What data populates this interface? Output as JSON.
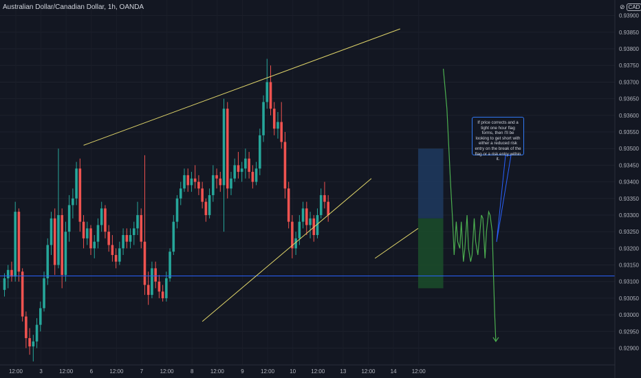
{
  "header": {
    "title": "Australian Dollar/Canadian Dollar, 1h, OANDA",
    "currency_prefix": "⊘",
    "currency": "CAD"
  },
  "annotation": {
    "text": "If price corrects and a tight one hour flag forms, then I'll be looking to get short with either a reduced risk entry on the break of the flag or a risk entry within it."
  },
  "colors": {
    "background": "#131722",
    "up": "#26a69a",
    "down": "#ef5350",
    "support_line": "#2962ff",
    "trendline": "#e0d56a",
    "projection": "#4caf50",
    "risk_zone": "#1e3a5f",
    "reward_zone": "#1b4d2a"
  },
  "chart_data": {
    "type": "candlestick",
    "symbol": "Australian Dollar/Canadian Dollar",
    "interval": "1h",
    "source": "OANDA",
    "y_ticks": [
      "0.93900",
      "0.93850",
      "0.93800",
      "0.93750",
      "0.93700",
      "0.93650",
      "0.93600",
      "0.93550",
      "0.93500",
      "0.93450",
      "0.93400",
      "0.93350",
      "0.93300",
      "0.93250",
      "0.93200",
      "0.93150",
      "0.93100",
      "0.93050",
      "0.93000",
      "0.92950",
      "0.92900"
    ],
    "ylim": [
      0.9287,
      0.9392
    ],
    "x_ticks": [
      "12:00",
      "3",
      "12:00",
      "6",
      "12:00",
      "7",
      "12:00",
      "8",
      "12:00",
      "9",
      "12:00",
      "10",
      "12:00",
      "13",
      "12:00",
      "14",
      "12:00"
    ],
    "x_tick_slots": [
      2,
      9,
      16,
      23,
      30,
      37,
      44,
      51,
      58,
      65,
      72,
      79,
      86,
      93,
      100,
      107,
      114
    ],
    "support_level": 0.93117,
    "candles_ohlc": [
      [
        0.93075,
        0.93125,
        0.93055,
        0.9311
      ],
      [
        0.9311,
        0.9315,
        0.9308,
        0.93135
      ],
      [
        0.93135,
        0.9316,
        0.931,
        0.93115
      ],
      [
        0.93115,
        0.9334,
        0.931,
        0.9331
      ],
      [
        0.9331,
        0.9332,
        0.931,
        0.9313
      ],
      [
        0.9313,
        0.9314,
        0.9298,
        0.92995
      ],
      [
        0.92995,
        0.9301,
        0.929,
        0.9293
      ],
      [
        0.9293,
        0.9296,
        0.9288,
        0.92905
      ],
      [
        0.92905,
        0.9294,
        0.9286,
        0.9292
      ],
      [
        0.9292,
        0.9299,
        0.929,
        0.9297
      ],
      [
        0.9297,
        0.9304,
        0.9295,
        0.9302
      ],
      [
        0.9302,
        0.9313,
        0.9301,
        0.9311
      ],
      [
        0.9311,
        0.9323,
        0.9309,
        0.9321
      ],
      [
        0.9321,
        0.9331,
        0.9318,
        0.9329
      ],
      [
        0.9329,
        0.9332,
        0.9312,
        0.9315
      ],
      [
        0.9315,
        0.935,
        0.9314,
        0.933
      ],
      [
        0.933,
        0.9332,
        0.9308,
        0.9312
      ],
      [
        0.9312,
        0.9328,
        0.931,
        0.9325
      ],
      [
        0.9325,
        0.9336,
        0.9322,
        0.9333
      ],
      [
        0.9333,
        0.9338,
        0.9329,
        0.9335
      ],
      [
        0.9335,
        0.9346,
        0.9333,
        0.9344
      ],
      [
        0.9344,
        0.9347,
        0.9325,
        0.9328
      ],
      [
        0.9328,
        0.933,
        0.932,
        0.9323
      ],
      [
        0.9323,
        0.9328,
        0.9321,
        0.9326
      ],
      [
        0.9326,
        0.9327,
        0.9318,
        0.932
      ],
      [
        0.932,
        0.9324,
        0.9317,
        0.9322
      ],
      [
        0.9322,
        0.9329,
        0.932,
        0.9327
      ],
      [
        0.9327,
        0.9334,
        0.9325,
        0.9332
      ],
      [
        0.9332,
        0.9333,
        0.9323,
        0.9325
      ],
      [
        0.9325,
        0.9327,
        0.9319,
        0.9321
      ],
      [
        0.9321,
        0.9324,
        0.9316,
        0.9318
      ],
      [
        0.9318,
        0.932,
        0.9314,
        0.9316
      ],
      [
        0.9316,
        0.9322,
        0.9315,
        0.932
      ],
      [
        0.932,
        0.9326,
        0.9318,
        0.9324
      ],
      [
        0.9324,
        0.9326,
        0.932,
        0.9322
      ],
      [
        0.9322,
        0.9326,
        0.932,
        0.9324
      ],
      [
        0.9324,
        0.9328,
        0.9321,
        0.9326
      ],
      [
        0.9326,
        0.9334,
        0.9324,
        0.933
      ],
      [
        0.933,
        0.9332,
        0.932,
        0.9322
      ],
      [
        0.9322,
        0.9348,
        0.9306,
        0.9309
      ],
      [
        0.9309,
        0.9313,
        0.9303,
        0.9306
      ],
      [
        0.9306,
        0.9316,
        0.9305,
        0.9314
      ],
      [
        0.9314,
        0.9316,
        0.9308,
        0.931
      ],
      [
        0.931,
        0.9312,
        0.9305,
        0.9307
      ],
      [
        0.9307,
        0.9309,
        0.9304,
        0.9305
      ],
      [
        0.9305,
        0.9313,
        0.9304,
        0.9311
      ],
      [
        0.9311,
        0.932,
        0.931,
        0.9319
      ],
      [
        0.9319,
        0.933,
        0.9318,
        0.9328
      ],
      [
        0.9328,
        0.9336,
        0.9326,
        0.9335
      ],
      [
        0.9335,
        0.934,
        0.9333,
        0.9338
      ],
      [
        0.9338,
        0.9344,
        0.9337,
        0.9342
      ],
      [
        0.9342,
        0.9344,
        0.9337,
        0.9339
      ],
      [
        0.9339,
        0.9343,
        0.9337,
        0.9341
      ],
      [
        0.9341,
        0.9345,
        0.9338,
        0.934
      ],
      [
        0.934,
        0.9342,
        0.9336,
        0.9338
      ],
      [
        0.9338,
        0.934,
        0.9332,
        0.9334
      ],
      [
        0.9334,
        0.9335,
        0.9328,
        0.933
      ],
      [
        0.933,
        0.9338,
        0.9329,
        0.9336
      ],
      [
        0.9336,
        0.9345,
        0.9334,
        0.9342
      ],
      [
        0.9342,
        0.9344,
        0.9338,
        0.9341
      ],
      [
        0.9341,
        0.9343,
        0.9337,
        0.9339
      ],
      [
        0.9339,
        0.9365,
        0.9325,
        0.9362
      ],
      [
        0.9362,
        0.9364,
        0.9335,
        0.9338
      ],
      [
        0.9338,
        0.9343,
        0.9336,
        0.9341
      ],
      [
        0.9341,
        0.9347,
        0.934,
        0.9345
      ],
      [
        0.9345,
        0.9349,
        0.9341,
        0.9343
      ],
      [
        0.9343,
        0.9346,
        0.934,
        0.9344
      ],
      [
        0.9344,
        0.935,
        0.9341,
        0.9347
      ],
      [
        0.9347,
        0.9349,
        0.9341,
        0.9343
      ],
      [
        0.9343,
        0.9345,
        0.9338,
        0.934
      ],
      [
        0.934,
        0.9346,
        0.9339,
        0.9344
      ],
      [
        0.9344,
        0.9356,
        0.9342,
        0.9354
      ],
      [
        0.9354,
        0.9366,
        0.9352,
        0.9364
      ],
      [
        0.9364,
        0.9377,
        0.9362,
        0.937
      ],
      [
        0.937,
        0.9375,
        0.936,
        0.9362
      ],
      [
        0.9362,
        0.9364,
        0.9354,
        0.9356
      ],
      [
        0.9356,
        0.9361,
        0.9353,
        0.9358
      ],
      [
        0.9358,
        0.9364,
        0.935,
        0.9352
      ],
      [
        0.9352,
        0.9355,
        0.9335,
        0.9338
      ],
      [
        0.9338,
        0.934,
        0.9326,
        0.9328
      ],
      [
        0.9328,
        0.933,
        0.9317,
        0.932
      ],
      [
        0.932,
        0.9325,
        0.9318,
        0.9323
      ],
      [
        0.9323,
        0.933,
        0.9321,
        0.9328
      ],
      [
        0.9328,
        0.9334,
        0.9326,
        0.9332
      ],
      [
        0.9332,
        0.9334,
        0.9324,
        0.9327
      ],
      [
        0.9327,
        0.9331,
        0.9323,
        0.9329
      ],
      [
        0.9329,
        0.933,
        0.9322,
        0.9324
      ],
      [
        0.9324,
        0.9332,
        0.9323,
        0.933
      ],
      [
        0.933,
        0.9338,
        0.9329,
        0.9336
      ],
      [
        0.9336,
        0.934,
        0.9332,
        0.9334
      ],
      [
        0.9334,
        0.9336,
        0.9328,
        0.933
      ]
    ],
    "trendlines": [
      {
        "slot1": 22,
        "price1": 0.9351,
        "slot2": 110,
        "price2": 0.9386
      },
      {
        "slot1": 55,
        "price1": 0.9298,
        "slot2": 102,
        "price2": 0.9341
      },
      {
        "slot1": 103,
        "price1": 0.9317,
        "slot2": 115,
        "price2": 0.9326
      }
    ],
    "position_zones": [
      {
        "slot_start": 115,
        "slot_end": 122,
        "price_top": 0.935,
        "price_bottom": 0.9329
      },
      {
        "slot_start": 115,
        "slot_end": 122,
        "price_top": 0.9329,
        "price_bottom": 0.9308
      }
    ],
    "projection_path": [
      [
        122,
        0.9374
      ],
      [
        123,
        0.9362
      ],
      [
        124,
        0.934
      ],
      [
        124.6,
        0.9328
      ],
      [
        125,
        0.9318
      ],
      [
        125.6,
        0.9328
      ],
      [
        126,
        0.9322
      ],
      [
        126.6,
        0.932
      ],
      [
        127,
        0.9328
      ],
      [
        127.6,
        0.9316
      ],
      [
        128,
        0.932
      ],
      [
        128.6,
        0.933
      ],
      [
        129,
        0.932
      ],
      [
        129.6,
        0.9316
      ],
      [
        130,
        0.9318
      ],
      [
        130.6,
        0.9329
      ],
      [
        131,
        0.9322
      ],
      [
        131.6,
        0.9318
      ],
      [
        132,
        0.9323
      ],
      [
        132.6,
        0.933
      ],
      [
        133,
        0.9329
      ],
      [
        133.6,
        0.9317
      ],
      [
        134,
        0.9325
      ],
      [
        134.6,
        0.9331
      ],
      [
        135,
        0.933
      ],
      [
        135.6,
        0.9325
      ],
      [
        136,
        0.931
      ],
      [
        136.3,
        0.93
      ],
      [
        136.6,
        0.9292
      ]
    ]
  }
}
